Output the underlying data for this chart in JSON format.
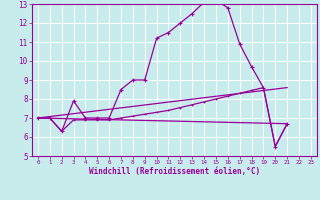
{
  "background_color": "#c8ecec",
  "grid_color": "#ffffff",
  "line_color": "#990099",
  "xlabel": "Windchill (Refroidissement éolien,°C)",
  "xlim": [
    -0.5,
    23.5
  ],
  "ylim": [
    5,
    13
  ],
  "yticks": [
    5,
    6,
    7,
    8,
    9,
    10,
    11,
    12,
    13
  ],
  "xticks": [
    0,
    1,
    2,
    3,
    4,
    5,
    6,
    7,
    8,
    9,
    10,
    11,
    12,
    13,
    14,
    15,
    16,
    17,
    18,
    19,
    20,
    21,
    22,
    23
  ],
  "line1_x": [
    0,
    1,
    2,
    3,
    4,
    5,
    6,
    7,
    8,
    9,
    10,
    11,
    12,
    13,
    14,
    15,
    16,
    17,
    18,
    19,
    20,
    21
  ],
  "line1_y": [
    7.0,
    7.0,
    6.3,
    7.9,
    7.0,
    7.0,
    7.0,
    8.5,
    9.0,
    9.0,
    11.2,
    11.5,
    12.0,
    12.5,
    13.1,
    13.2,
    12.8,
    10.9,
    9.7,
    8.6,
    5.5,
    6.7
  ],
  "line2_x": [
    0,
    1,
    2,
    3,
    4,
    5,
    6,
    7,
    8,
    9,
    10,
    11,
    12,
    13,
    14,
    15,
    16,
    17,
    18,
    19,
    20,
    21
  ],
  "line2_y": [
    7.0,
    7.0,
    6.3,
    6.9,
    6.9,
    6.9,
    6.9,
    7.0,
    7.1,
    7.2,
    7.3,
    7.4,
    7.55,
    7.7,
    7.85,
    8.0,
    8.15,
    8.3,
    8.45,
    8.6,
    5.5,
    6.7
  ],
  "line3_x": [
    0,
    21
  ],
  "line3_y": [
    7.0,
    6.7
  ],
  "line4_x": [
    0,
    21
  ],
  "line4_y": [
    7.0,
    8.6
  ],
  "xlabel_fontsize": 5.5,
  "ylabel_fontsize": 5.5,
  "tick_fontsize_x": 4.2,
  "tick_fontsize_y": 5.5
}
